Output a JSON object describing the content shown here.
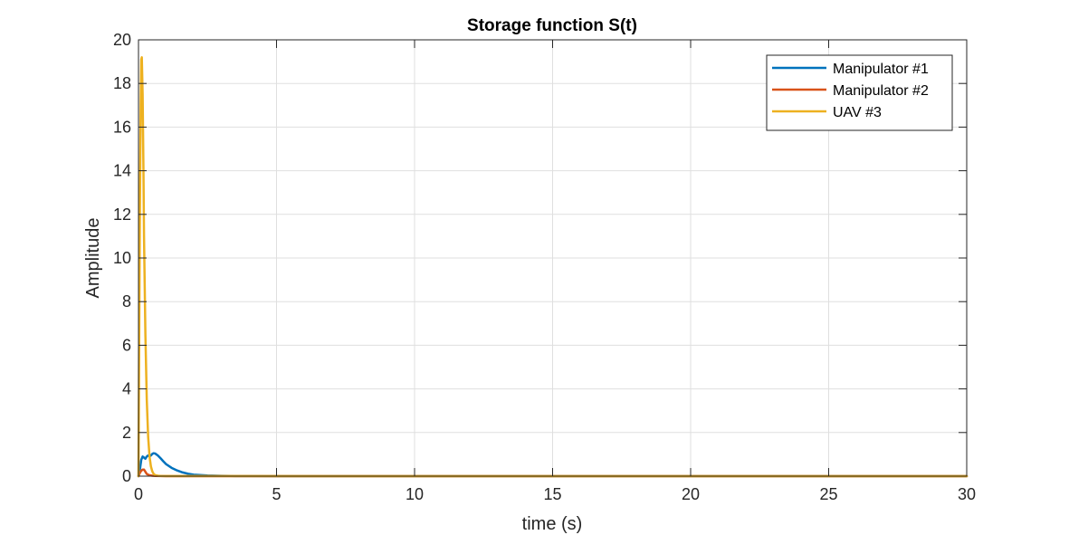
{
  "chart_data": {
    "type": "line",
    "title": "Storage function S(t)",
    "xlabel": "time (s)",
    "ylabel": "Amplitude",
    "xlim": [
      0,
      30
    ],
    "ylim": [
      0,
      20
    ],
    "xticks": [
      0,
      5,
      10,
      15,
      20,
      25,
      30
    ],
    "yticks": [
      0,
      2,
      4,
      6,
      8,
      10,
      12,
      14,
      16,
      18,
      20
    ],
    "grid": true,
    "legend_position": "top-right",
    "series": [
      {
        "name": "Manipulator #1",
        "color": "#0072BD",
        "x": [
          0,
          0.05,
          0.1,
          0.15,
          0.2,
          0.25,
          0.3,
          0.35,
          0.4,
          0.45,
          0.5,
          0.55,
          0.6,
          0.7,
          0.8,
          0.9,
          1.0,
          1.2,
          1.4,
          1.6,
          1.8,
          2.0,
          2.5,
          3.0,
          3.5,
          4.0,
          5.0,
          30.0
        ],
        "y": [
          0,
          0.3,
          0.75,
          0.9,
          0.85,
          0.8,
          0.9,
          0.95,
          0.9,
          0.95,
          1.02,
          1.05,
          1.04,
          0.95,
          0.82,
          0.68,
          0.55,
          0.38,
          0.26,
          0.17,
          0.11,
          0.07,
          0.03,
          0.015,
          0.007,
          0.003,
          0.001,
          0
        ]
      },
      {
        "name": "Manipulator #2",
        "color": "#D95319",
        "x": [
          0,
          0.05,
          0.1,
          0.15,
          0.2,
          0.25,
          0.3,
          0.4,
          0.5,
          0.6,
          0.8,
          1.0,
          30.0
        ],
        "y": [
          0,
          0.15,
          0.25,
          0.3,
          0.3,
          0.2,
          0.1,
          0.04,
          0.02,
          0.01,
          0.003,
          0.001,
          0
        ]
      },
      {
        "name": "UAV #3",
        "color": "#EDB120",
        "x": [
          0,
          0.02,
          0.05,
          0.08,
          0.1,
          0.12,
          0.15,
          0.18,
          0.2,
          0.25,
          0.3,
          0.35,
          0.4,
          0.45,
          0.5,
          0.55,
          0.6,
          0.7,
          0.8,
          1.0,
          30.0
        ],
        "y": [
          0,
          5,
          12,
          17,
          19.1,
          19.2,
          17.5,
          14,
          11,
          6.5,
          3.5,
          1.8,
          0.9,
          0.45,
          0.22,
          0.1,
          0.05,
          0.02,
          0.01,
          0.003,
          0
        ]
      }
    ]
  }
}
